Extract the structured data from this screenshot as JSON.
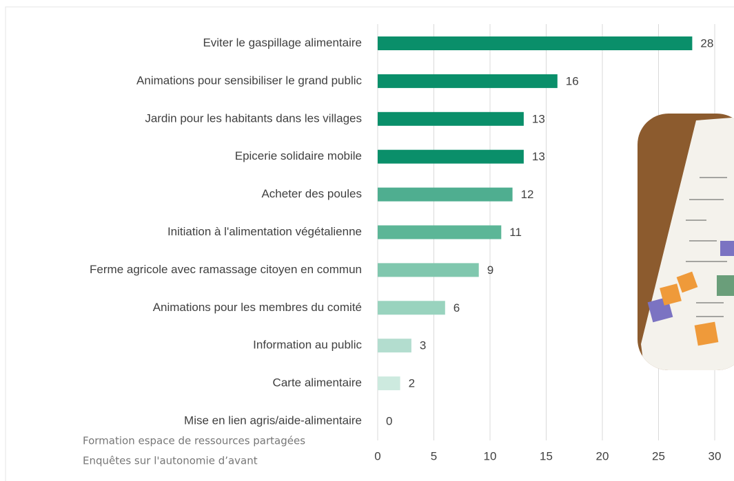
{
  "chart_data": {
    "type": "barh",
    "categories": [
      "Eviter le gaspillage alimentaire",
      "Animations pour sensibiliser le grand public",
      "Jardin pour les habitants dans les villages",
      "Epicerie solidaire mobile",
      "Acheter des poules",
      "Initiation à l'alimentation végétalienne",
      "Ferme agricole avec ramassage citoyen en commun",
      "Animations pour les membres du comité",
      "Information au public",
      "Carte alimentaire",
      "Mise en lien agris/aide-alimentaire"
    ],
    "values": [
      28,
      16,
      13,
      13,
      12,
      11,
      9,
      6,
      3,
      2,
      0
    ],
    "colors": [
      "#0a8f6a",
      "#0a8f6a",
      "#0a8f6a",
      "#0a8f6a",
      "#4fae90",
      "#5cb697",
      "#80c7ae",
      "#99d3be",
      "#b3ddcf",
      "#cdeadf",
      "#cdeadf"
    ],
    "xlim": [
      0,
      30
    ],
    "xticks": [
      0,
      5,
      10,
      15,
      20,
      25,
      30
    ],
    "grid": true,
    "annotations": [
      "Formation espace de ressources partagées",
      "Enquêtes sur l'autonomie d’avant"
    ]
  }
}
